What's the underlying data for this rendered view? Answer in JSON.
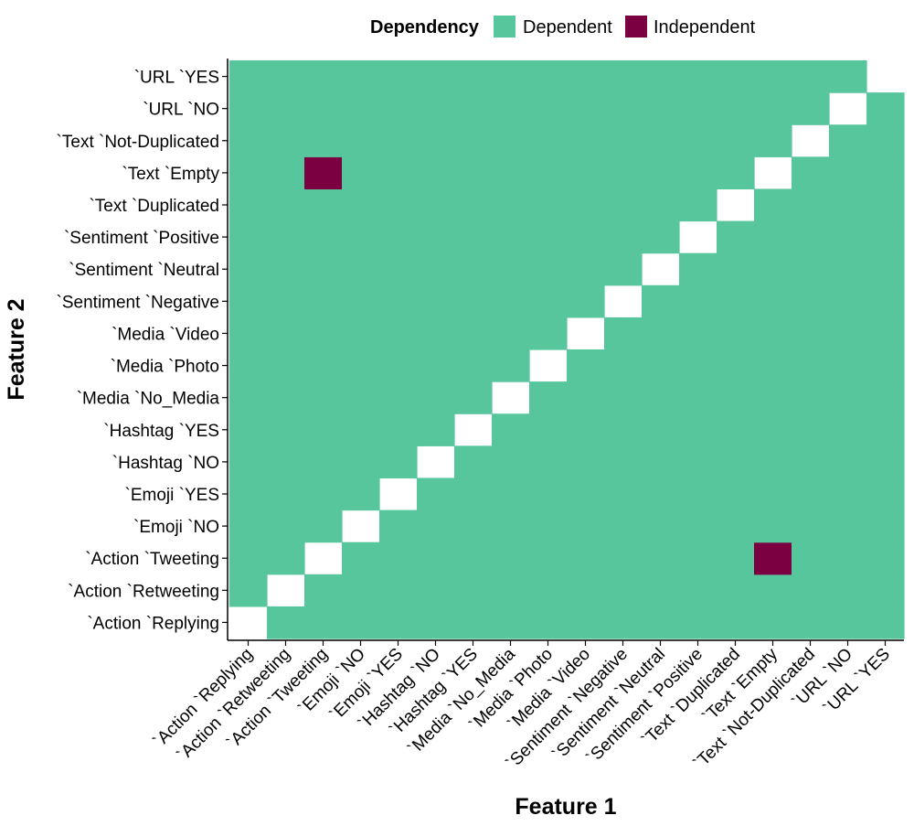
{
  "chart_data": {
    "type": "heatmap",
    "xlabel": "Feature 1",
    "ylabel": "Feature 2",
    "categories": [
      "`Action `Replying",
      "`Action `Retweeting",
      "`Action `Tweeting",
      "`Emoji `NO",
      "`Emoji `YES",
      "`Hashtag `NO",
      "`Hashtag `YES",
      "`Media `No_Media",
      "`Media `Photo",
      "`Media `Video",
      "`Sentiment `Negative",
      "`Sentiment `Neutral",
      "`Sentiment `Positive",
      "`Text `Duplicated",
      "`Text `Empty",
      "`Text `Not-Duplicated",
      "`URL `NO",
      "`URL `YES"
    ],
    "legend": {
      "title": "Dependency",
      "position": "top",
      "entries": [
        {
          "label": "Dependent",
          "color": "#58c69d"
        },
        {
          "label": "Independent",
          "color": "#7b0041"
        }
      ]
    },
    "default_value": "Dependent",
    "diagonal": "blank",
    "cells_independent": [
      {
        "x": "`Action `Tweeting",
        "y": "`Text `Empty"
      },
      {
        "x": "`Text `Empty",
        "y": "`Action `Tweeting"
      }
    ],
    "grid": false
  }
}
